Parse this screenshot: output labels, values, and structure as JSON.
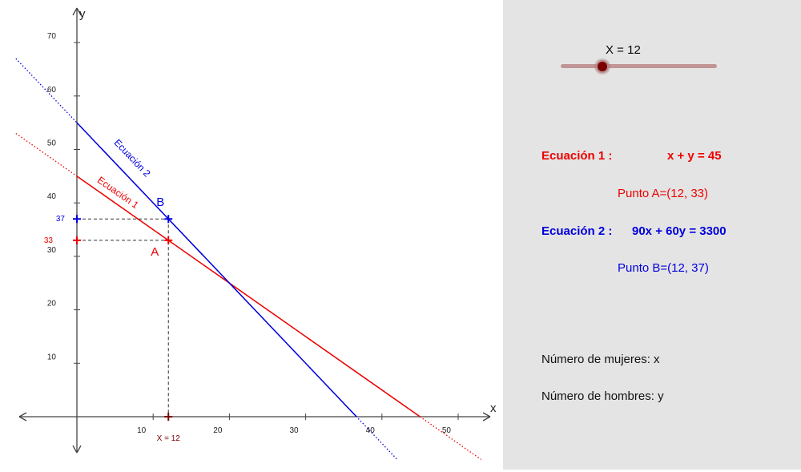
{
  "slider": {
    "label": "X = 12",
    "value": 12,
    "min": 0,
    "max": 45
  },
  "chart_data": {
    "type": "line",
    "xlabel": "x",
    "ylabel": "y",
    "xlim": [
      -7,
      55
    ],
    "ylim": [
      -5,
      75
    ],
    "x_ticks": [
      10,
      20,
      30,
      40,
      50
    ],
    "y_ticks": [
      10,
      20,
      30,
      40,
      50,
      60,
      70
    ],
    "grid": false,
    "series": [
      {
        "name": "Ecuación 1",
        "equation": "x + y = 45",
        "color": "#ee0000",
        "solid_range": [
          0,
          45
        ],
        "dotted_range": [
          -8,
          53
        ]
      },
      {
        "name": "Ecuación 2",
        "equation": "90x + 60y = 3300",
        "color": "#0000dd",
        "solid_range": [
          0,
          36.67
        ],
        "dotted_range": [
          -8,
          42
        ]
      }
    ],
    "points": [
      {
        "label": "A",
        "x": 12,
        "y": 33,
        "color": "#ee0000"
      },
      {
        "label": "B",
        "x": 12,
        "y": 37,
        "color": "#0000dd"
      }
    ],
    "axis_markers": {
      "x_label": "X = 12",
      "y_label_a": "33",
      "y_label_b": "37"
    }
  },
  "panel": {
    "eq1_label": "Ecuación 1 :",
    "eq1_formula": "x + y = 45",
    "pointA": "Punto A=(12, 33)",
    "eq2_label": "Ecuación 2 :",
    "eq2_formula": "90x + 60y = 3300",
    "pointB": "Punto B=(12, 37)",
    "mujeres": "Número de mujeres: x",
    "hombres": "Número de hombres: y"
  }
}
